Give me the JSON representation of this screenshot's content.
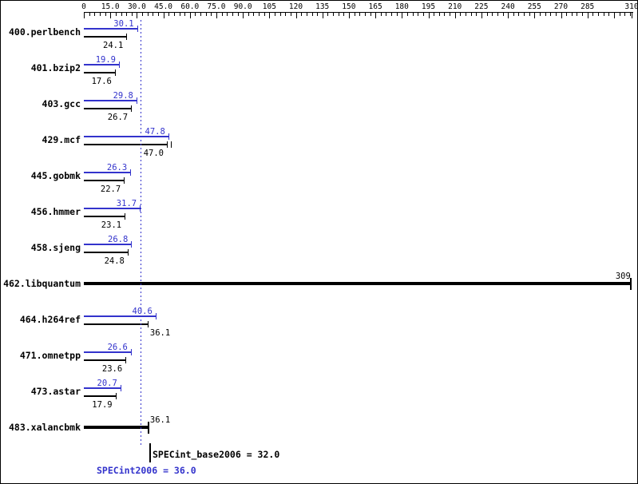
{
  "colors": {
    "peak": "#3333cc",
    "base": "#000000",
    "background": "#ffffff",
    "frame_border": "#000000",
    "mean_line": "#3333cc"
  },
  "chart_data": {
    "type": "bar",
    "orientation": "horizontal",
    "title": "",
    "xlim": [
      0,
      310
    ],
    "minor_tick_step": 3,
    "grid": false,
    "x_ticks": [
      {
        "value": 0,
        "label": "0"
      },
      {
        "value": 15,
        "label": "15.0"
      },
      {
        "value": 30,
        "label": "30.0"
      },
      {
        "value": 45,
        "label": "45.0"
      },
      {
        "value": 60,
        "label": "60.0"
      },
      {
        "value": 75,
        "label": "75.0"
      },
      {
        "value": 90,
        "label": "90.0"
      },
      {
        "value": 105,
        "label": "105"
      },
      {
        "value": 120,
        "label": "120"
      },
      {
        "value": 135,
        "label": "135"
      },
      {
        "value": 150,
        "label": "150"
      },
      {
        "value": 165,
        "label": "165"
      },
      {
        "value": 180,
        "label": "180"
      },
      {
        "value": 195,
        "label": "195"
      },
      {
        "value": 210,
        "label": "210"
      },
      {
        "value": 225,
        "label": "225"
      },
      {
        "value": 240,
        "label": "240"
      },
      {
        "value": 255,
        "label": "255"
      },
      {
        "value": 270,
        "label": "270"
      },
      {
        "value": 285,
        "label": "285"
      },
      {
        "value": 310,
        "label": "310"
      }
    ],
    "series": [
      {
        "name": "peak (SPECint2006)",
        "color": "#3333cc"
      },
      {
        "name": "base (SPECint_base2006)",
        "color": "#000000"
      }
    ],
    "benchmarks": [
      {
        "name": "400.perlbench",
        "peak": 30.1,
        "peak_label": "30.1",
        "base": 24.1,
        "base_label": "24.1"
      },
      {
        "name": "401.bzip2",
        "peak": 19.9,
        "peak_label": "19.9",
        "base": 17.6,
        "base_label": "17.6"
      },
      {
        "name": "403.gcc",
        "peak": 29.8,
        "peak_label": "29.8",
        "base": 26.7,
        "base_label": "26.7"
      },
      {
        "name": "429.mcf",
        "peak": 47.8,
        "peak_label": "47.8",
        "base": 47.0,
        "base_label": "47.0",
        "base_double_cap": true
      },
      {
        "name": "445.gobmk",
        "peak": 26.3,
        "peak_label": "26.3",
        "base": 22.7,
        "base_label": "22.7"
      },
      {
        "name": "456.hmmer",
        "peak": 31.7,
        "peak_label": "31.7",
        "base": 23.1,
        "base_label": "23.1"
      },
      {
        "name": "458.sjeng",
        "peak": 26.8,
        "peak_label": "26.8",
        "base": 24.8,
        "base_label": "24.8"
      },
      {
        "name": "462.libquantum",
        "single": 309,
        "label": "309"
      },
      {
        "name": "464.h264ref",
        "peak": 40.6,
        "peak_label": "40.6",
        "base": 36.1,
        "base_label": "36.1",
        "base_label_right_of_end": true
      },
      {
        "name": "471.omnetpp",
        "peak": 26.6,
        "peak_label": "26.6",
        "base": 23.6,
        "base_label": "23.6"
      },
      {
        "name": "473.astar",
        "peak": 20.7,
        "peak_label": "20.7",
        "base": 17.9,
        "base_label": "17.9"
      },
      {
        "name": "483.xalancbmk",
        "single": 36.1,
        "label": "36.1"
      }
    ],
    "mean_base": {
      "label": "SPECint_base2006 = 32.0",
      "value": 32.0
    },
    "mean_peak": {
      "label": "SPECint2006 = 36.0",
      "value": 36.0
    }
  }
}
